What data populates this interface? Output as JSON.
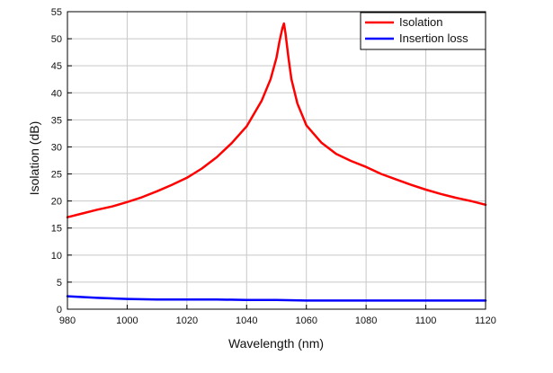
{
  "chart_data": {
    "type": "line",
    "title": "",
    "xlabel": "Wavelength (nm)",
    "ylabel": "Isolation (dB)",
    "xlim": [
      980,
      1120
    ],
    "ylim": [
      0,
      55
    ],
    "xticks": [
      980,
      1000,
      1020,
      1040,
      1060,
      1080,
      1100,
      1120
    ],
    "yticks": [
      0,
      5,
      10,
      15,
      20,
      25,
      30,
      35,
      40,
      45,
      50,
      55
    ],
    "grid": true,
    "legend_position": "top-right",
    "series": [
      {
        "name": "Isolation",
        "color": "#ff0000",
        "x": [
          980,
          985,
          990,
          995,
          1000,
          1005,
          1010,
          1015,
          1020,
          1025,
          1030,
          1035,
          1040,
          1045,
          1048,
          1050,
          1051,
          1052,
          1052.5,
          1053,
          1054,
          1055,
          1057,
          1060,
          1065,
          1070,
          1075,
          1080,
          1085,
          1090,
          1095,
          1100,
          1105,
          1110,
          1115,
          1120
        ],
        "values": [
          17.0,
          17.7,
          18.4,
          19.0,
          19.8,
          20.7,
          21.8,
          23.0,
          24.3,
          26.0,
          28.1,
          30.7,
          33.8,
          38.5,
          42.5,
          46.5,
          49.5,
          52.0,
          52.8,
          51.0,
          46.5,
          42.5,
          38.0,
          34.0,
          30.8,
          28.7,
          27.4,
          26.3,
          25.0,
          24.0,
          23.0,
          22.1,
          21.3,
          20.6,
          20.0,
          19.3
        ]
      },
      {
        "name": "Insertion loss",
        "color": "#0000ff",
        "x": [
          980,
          990,
          1000,
          1010,
          1020,
          1030,
          1040,
          1050,
          1060,
          1070,
          1080,
          1090,
          1100,
          1110,
          1120
        ],
        "values": [
          2.4,
          2.1,
          1.9,
          1.8,
          1.8,
          1.8,
          1.7,
          1.7,
          1.6,
          1.6,
          1.6,
          1.6,
          1.6,
          1.6,
          1.6
        ]
      }
    ]
  }
}
